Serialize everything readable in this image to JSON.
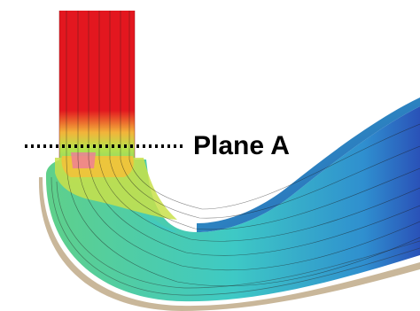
{
  "figure": {
    "plane_label": "Plane A"
  },
  "colors": {
    "inlet_red": "#e3171f",
    "transition_yellow": "#f2e63a",
    "flow_green": "#6fd37e",
    "flow_cyan": "#3ec9c5",
    "outer_blue": "#2a52b8",
    "streamline": "#1b1b1b",
    "wall_tan": "#c9b79a",
    "marker_line": "#000000"
  }
}
